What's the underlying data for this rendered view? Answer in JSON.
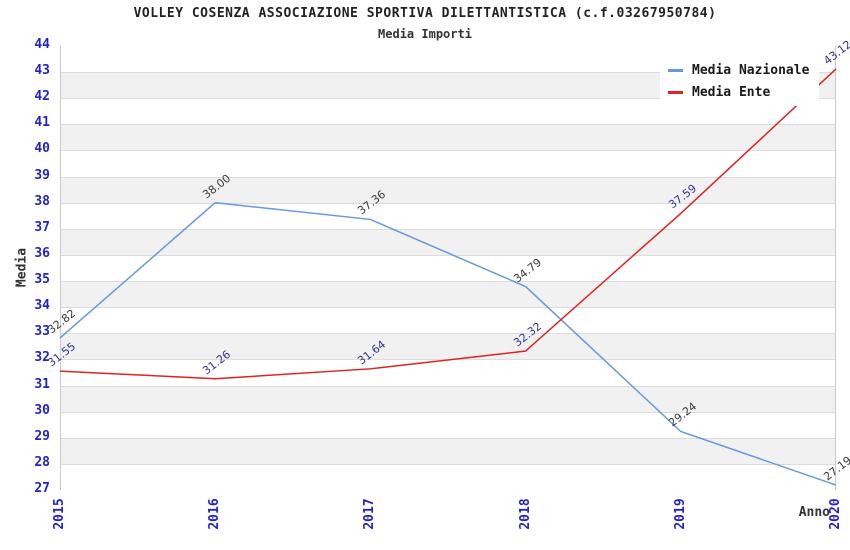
{
  "header": {
    "title": "VOLLEY COSENZA ASSOCIAZIONE SPORTIVA DILETTANTISTICA (c.f.03267950784)",
    "subtitle": "Media Importi"
  },
  "chart_data": {
    "type": "line",
    "title": "VOLLEY COSENZA ASSOCIAZIONE SPORTIVA DILETTANTISTICA (c.f.03267950784)",
    "subtitle": "Media Importi",
    "xlabel": "Anno",
    "ylabel": "Media",
    "categories": [
      "2015",
      "2016",
      "2017",
      "2018",
      "2019",
      "2020"
    ],
    "series": [
      {
        "name": "Media Nazionale",
        "color": "#6699dd",
        "label_color": "#3a3a3a",
        "values": [
          32.82,
          38.0,
          37.36,
          34.79,
          29.24,
          27.19
        ]
      },
      {
        "name": "Media Ente",
        "color": "#e02222",
        "label_color": "#333399",
        "values": [
          31.55,
          31.26,
          31.64,
          32.32,
          37.59,
          43.12
        ]
      }
    ],
    "ylim": [
      27,
      44
    ],
    "y_step": 1,
    "grid": true,
    "band_color": "#f1f1f1",
    "gridline_color": "#dcdcdc",
    "tick_color": "#2222cc",
    "legend_position": "top-right",
    "label_format_decimals": 2
  }
}
